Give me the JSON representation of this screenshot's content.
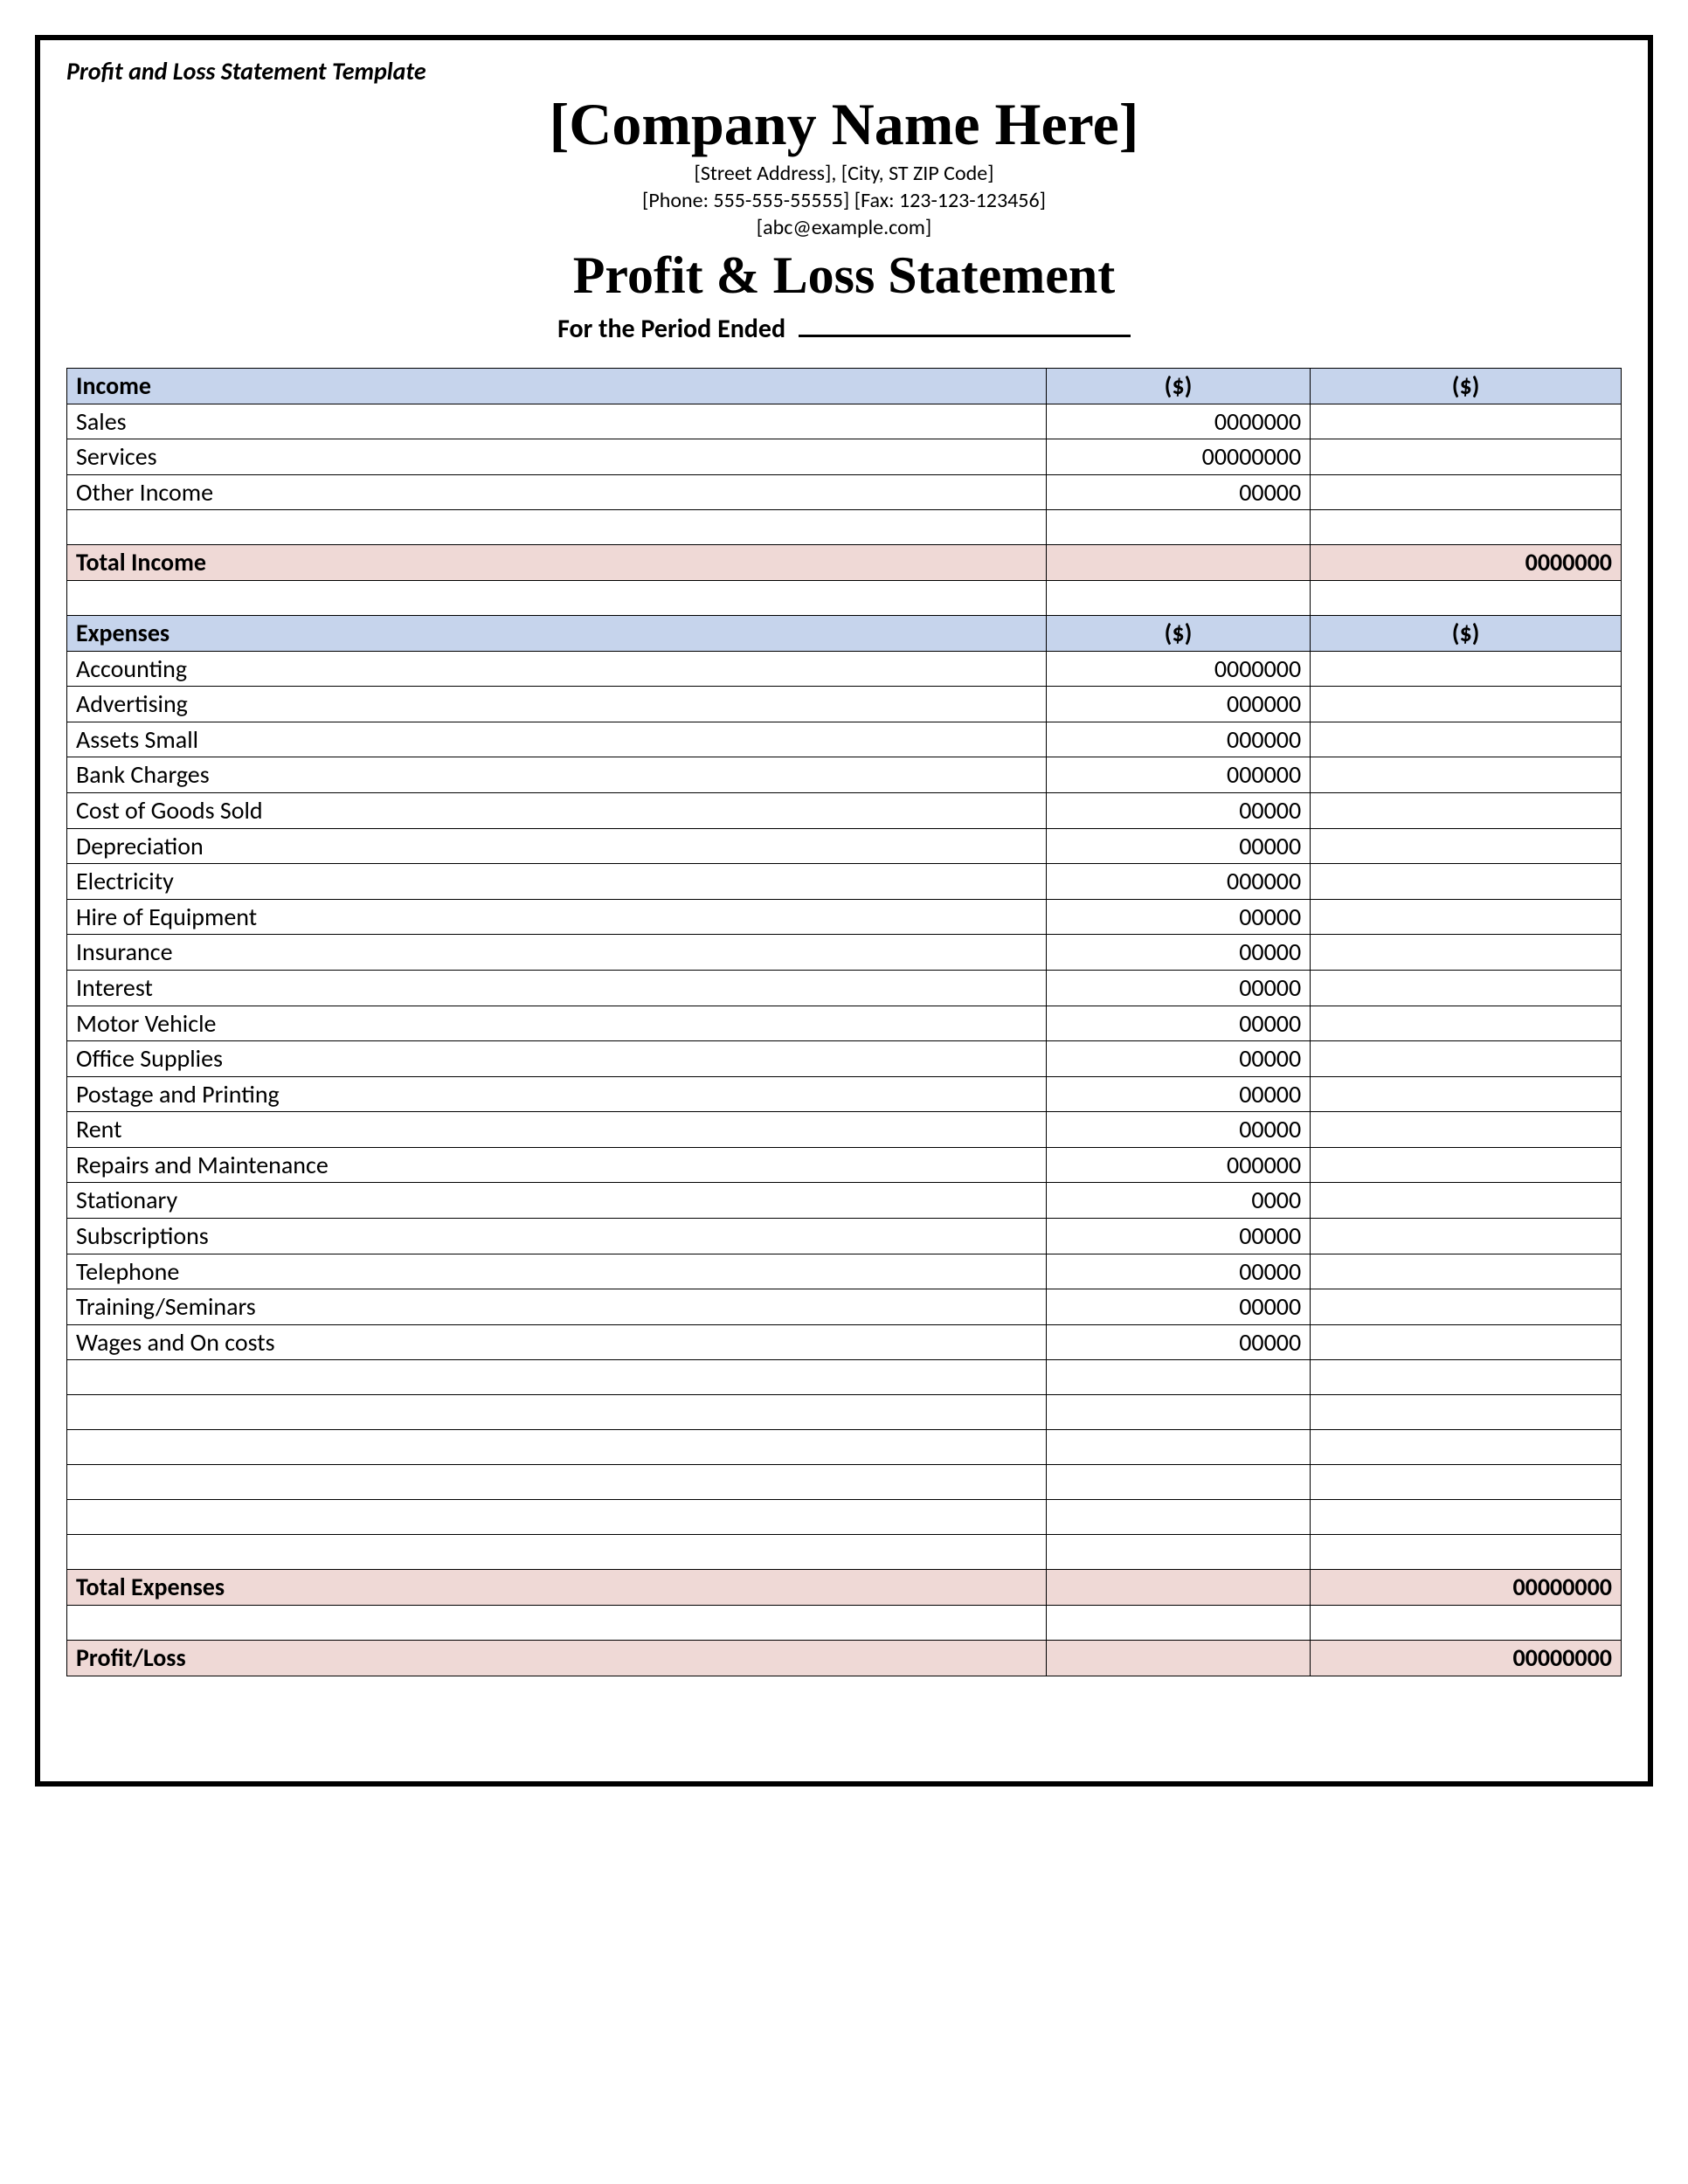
{
  "template_label": "Profit and Loss Statement Template",
  "company_name": "[Company Name Here]",
  "address_line": "[Street Address], [City, ST ZIP Code]",
  "phone_fax_line": "[Phone: 555-555-55555] [Fax: 123-123-123456]",
  "email_line": "[abc@example.com]",
  "statement_title": "Profit & Loss Statement",
  "period_label": "For the Period Ended",
  "col_amount_header": "($)",
  "income": {
    "section_label": "Income",
    "rows": [
      {
        "label": "Sales",
        "amount": "0000000"
      },
      {
        "label": "Services",
        "amount": "00000000"
      },
      {
        "label": "Other Income",
        "amount": "00000"
      }
    ],
    "total_label": "Total Income",
    "total_value": "0000000"
  },
  "expenses": {
    "section_label": "Expenses",
    "rows": [
      {
        "label": "Accounting",
        "amount": "0000000"
      },
      {
        "label": "Advertising",
        "amount": "000000"
      },
      {
        "label": "Assets Small",
        "amount": "000000"
      },
      {
        "label": "Bank Charges",
        "amount": "000000"
      },
      {
        "label": "Cost of Goods Sold",
        "amount": "00000"
      },
      {
        "label": "Depreciation",
        "amount": "00000"
      },
      {
        "label": "Electricity",
        "amount": "000000"
      },
      {
        "label": "Hire of Equipment",
        "amount": "00000"
      },
      {
        "label": "Insurance",
        "amount": "00000"
      },
      {
        "label": "Interest",
        "amount": "00000"
      },
      {
        "label": "Motor Vehicle",
        "amount": "00000"
      },
      {
        "label": "Office Supplies",
        "amount": "00000"
      },
      {
        "label": "Postage and Printing",
        "amount": "00000"
      },
      {
        "label": "Rent",
        "amount": "00000"
      },
      {
        "label": "Repairs and Maintenance",
        "amount": "000000"
      },
      {
        "label": "Stationary",
        "amount": "0000"
      },
      {
        "label": "Subscriptions",
        "amount": "00000"
      },
      {
        "label": "Telephone",
        "amount": "00000"
      },
      {
        "label": "Training/Seminars",
        "amount": "00000"
      },
      {
        "label": "Wages and On costs",
        "amount": "00000"
      }
    ],
    "blank_rows": 6,
    "total_label": "Total Expenses",
    "total_value": "00000000"
  },
  "profit_loss": {
    "label": "Profit/Loss",
    "value": "00000000"
  },
  "colors": {
    "header_blue": "#c6d4ec",
    "total_pink": "#efd9d6",
    "border": "#000000",
    "background": "#ffffff"
  }
}
